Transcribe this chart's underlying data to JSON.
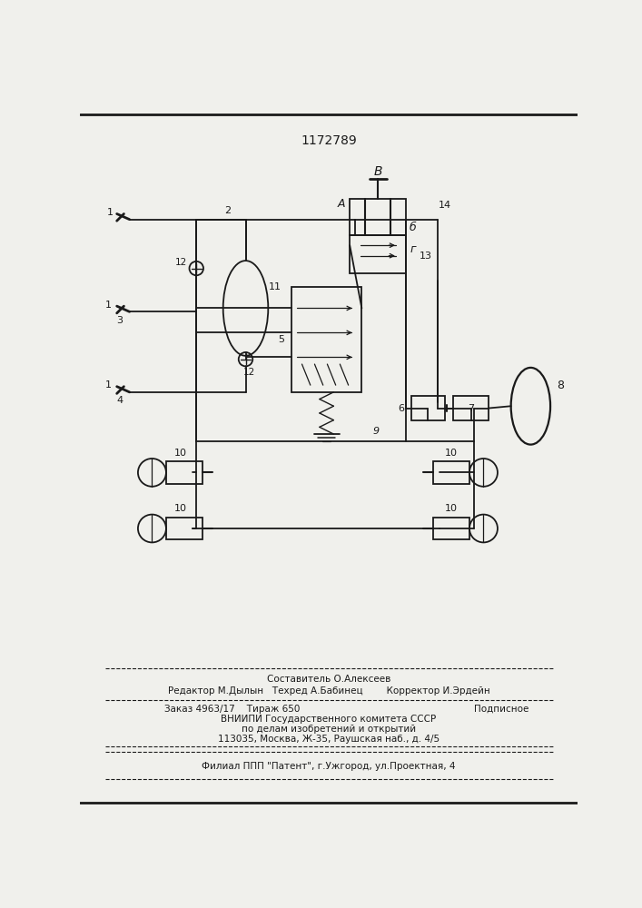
{
  "title": "1172789",
  "bg_color": "#f0f0ec",
  "line_color": "#1a1a1a",
  "footer": {
    "line1": "Составитель О.Алексеев",
    "line2": "Редактор М.Дылын   Техред А.Бабинец        Корректор И.Эрдейн",
    "line3_left": "Заказ 4963/17    Тираж 650",
    "line3_right": "Подписное",
    "line4": "ВНИИПИ Государственного комитета СССР",
    "line5": "по делам изобретений и открытий",
    "line6": "113035, Москва, Ж-35, Раушская наб., д. 4/5",
    "line7": "Филиал ППП \"Патент\", г.Ужгород, ул.Проектная, 4"
  }
}
